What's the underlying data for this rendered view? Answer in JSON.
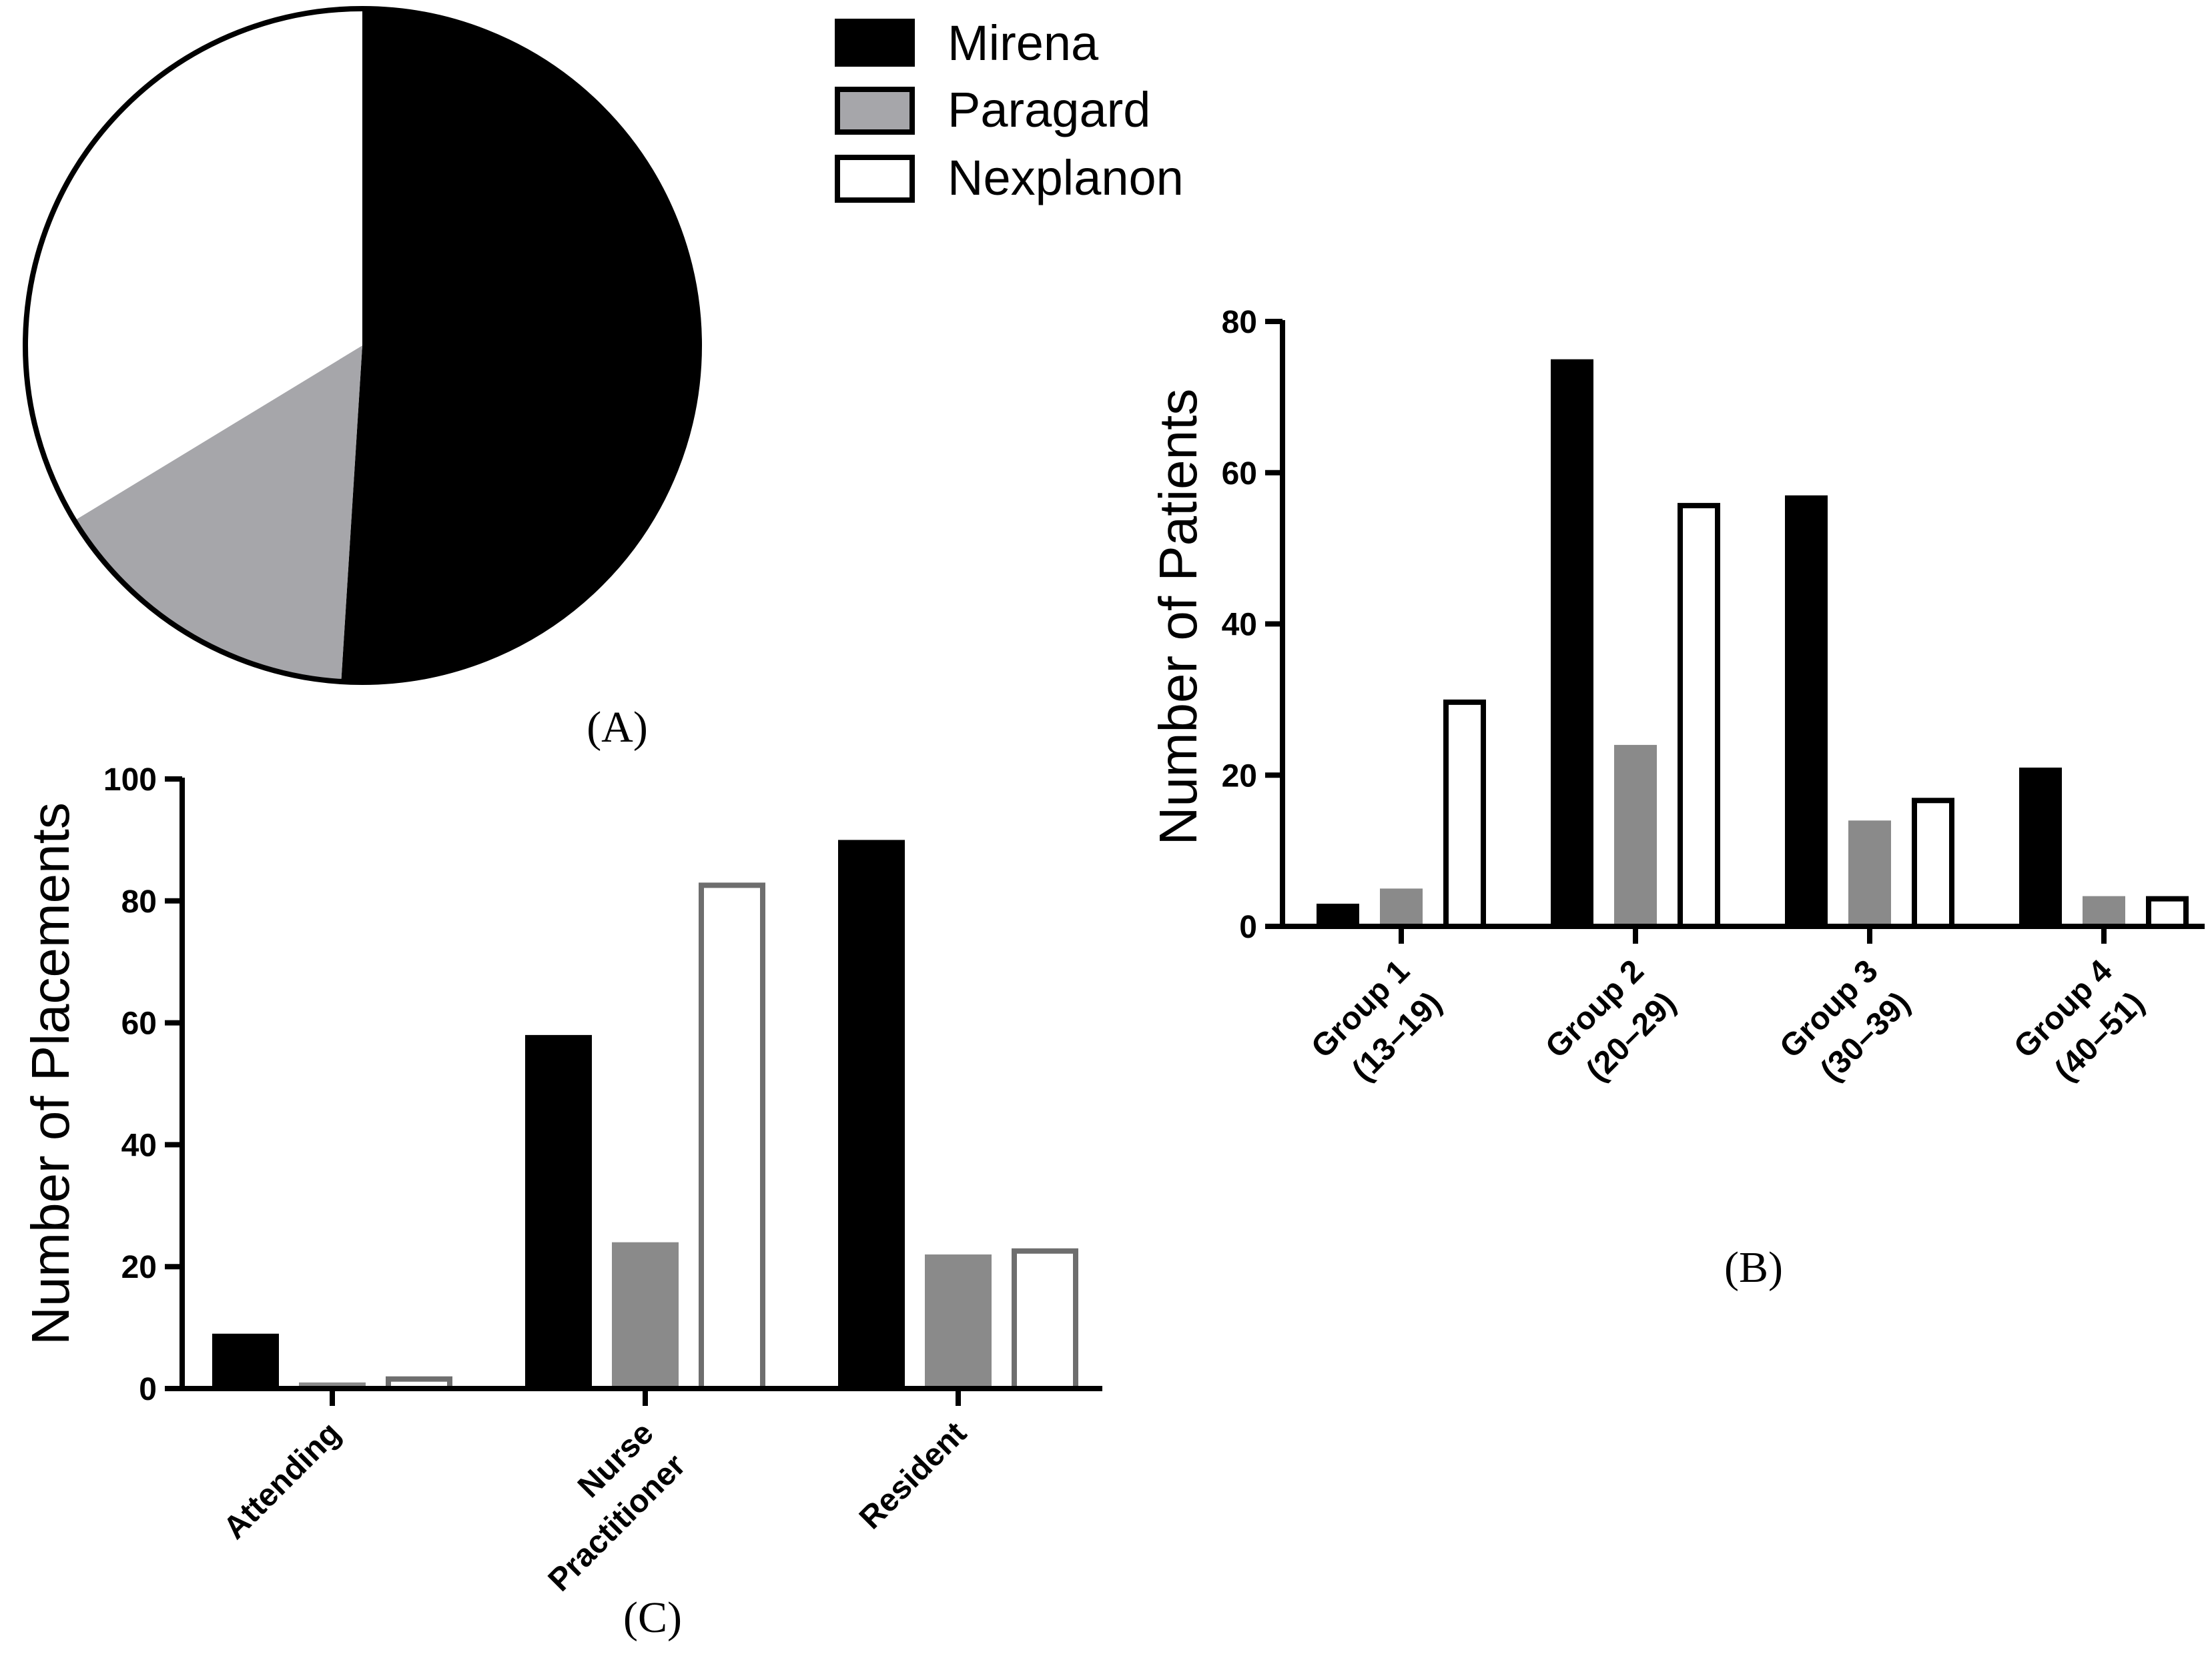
{
  "colors": {
    "mirena": "#000000",
    "paragard_pie": "#a6a6aa",
    "paragard_bar": "#8a8a8a",
    "nexplanon_fill": "#ffffff",
    "nexplanon_stroke_b": "#000000",
    "nexplanon_stroke_c": "#6e6e6e"
  },
  "legend": {
    "items": [
      {
        "label": "Mirena",
        "swatch": "mirena"
      },
      {
        "label": "Paragard",
        "swatch": "paragard"
      },
      {
        "label": "Nexplanon",
        "swatch": "nexplanon"
      }
    ]
  },
  "chart_data": [
    {
      "id": "A",
      "panel_label": "(A)",
      "type": "pie",
      "title": "",
      "labels": [
        "Mirena",
        "Paragard",
        "Nexplanon"
      ],
      "values": [
        51.0,
        15.3,
        33.7
      ],
      "start_angle_deg": 0,
      "direction": "clockwise"
    },
    {
      "id": "B",
      "panel_label": "(B)",
      "type": "bar",
      "title": "",
      "categories": [
        {
          "line1": "Group 1",
          "line2": "(13–19)"
        },
        {
          "line1": "Group 2",
          "line2": "(20–29)"
        },
        {
          "line1": "Group 3",
          "line2": "(30–39)"
        },
        {
          "line1": "Group 4",
          "line2": "(40–51)"
        }
      ],
      "series": [
        {
          "name": "Mirena",
          "values": [
            3,
            75,
            57,
            21
          ]
        },
        {
          "name": "Paragard",
          "values": [
            5,
            24,
            14,
            4
          ]
        },
        {
          "name": "Nexplanon",
          "values": [
            30,
            56,
            17,
            4
          ]
        }
      ],
      "xlabel": "",
      "ylabel": "Number of Patients",
      "ylim": [
        0,
        80
      ],
      "yticks": [
        0,
        20,
        40,
        60,
        80
      ],
      "grid": false
    },
    {
      "id": "C",
      "panel_label": "(C)",
      "type": "bar",
      "title": "",
      "categories": [
        {
          "line1": "Attending",
          "line2": ""
        },
        {
          "line1": "Nurse",
          "line2": "Practitioner"
        },
        {
          "line1": "Resident",
          "line2": ""
        }
      ],
      "series": [
        {
          "name": "Mirena",
          "values": [
            9,
            58,
            90
          ]
        },
        {
          "name": "Paragard",
          "values": [
            1,
            24,
            22
          ]
        },
        {
          "name": "Nexplanon",
          "values": [
            2,
            83,
            23
          ]
        }
      ],
      "xlabel": "",
      "ylabel": "Number of Placements",
      "ylim": [
        0,
        100
      ],
      "yticks": [
        0,
        20,
        40,
        60,
        80,
        100
      ],
      "grid": false
    }
  ]
}
